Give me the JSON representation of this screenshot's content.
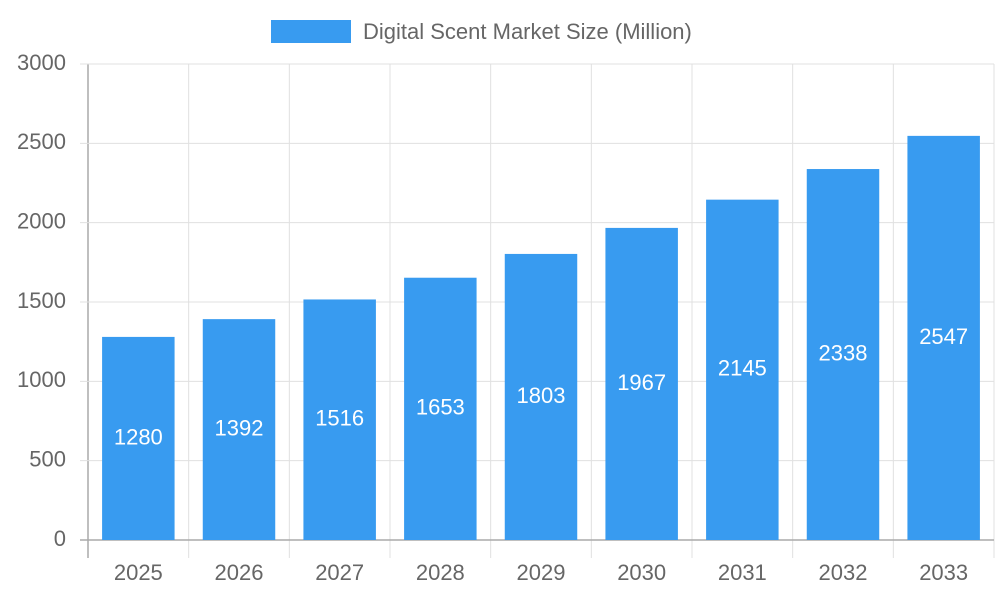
{
  "chart_data": {
    "type": "bar",
    "categories": [
      "2025",
      "2026",
      "2027",
      "2028",
      "2029",
      "2030",
      "2031",
      "2032",
      "2033"
    ],
    "series": [
      {
        "name": "Digital Scent Market Size (Million)",
        "color": "#389bf0",
        "values": [
          1280,
          1392,
          1516,
          1653,
          1803,
          1967,
          2145,
          2338,
          2547
        ]
      }
    ],
    "ylim": [
      0,
      3000
    ],
    "yticks": [
      0,
      500,
      1000,
      1500,
      2000,
      2500,
      3000
    ],
    "grid": true,
    "legend": "top"
  }
}
